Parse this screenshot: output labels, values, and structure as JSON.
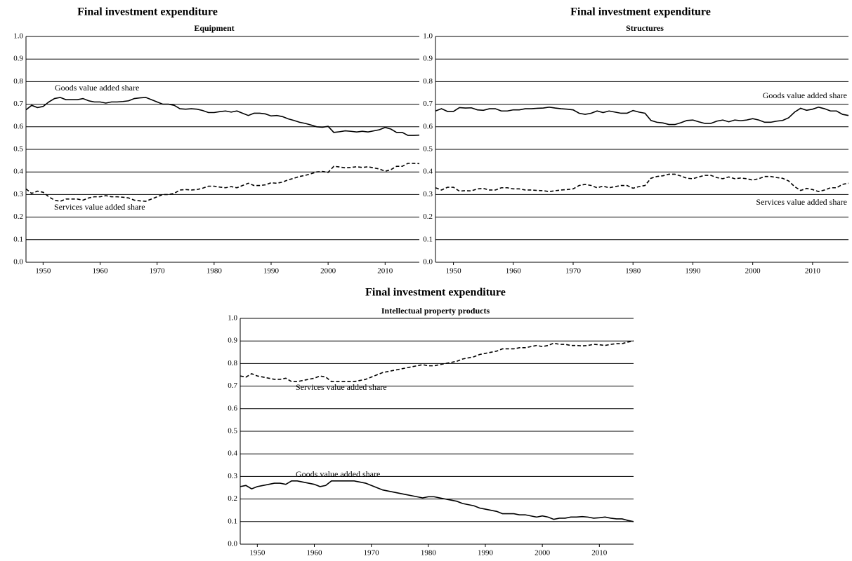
{
  "chart_data": [
    {
      "type": "line",
      "title": "Final investment expenditure",
      "subtitle": "Equipment",
      "x": [
        1947,
        1948,
        1949,
        1950,
        1951,
        1952,
        1953,
        1954,
        1955,
        1956,
        1957,
        1958,
        1959,
        1960,
        1961,
        1962,
        1963,
        1964,
        1965,
        1966,
        1967,
        1968,
        1969,
        1970,
        1971,
        1972,
        1973,
        1974,
        1975,
        1976,
        1977,
        1978,
        1979,
        1980,
        1981,
        1982,
        1983,
        1984,
        1985,
        1986,
        1987,
        1988,
        1989,
        1990,
        1991,
        1992,
        1993,
        1994,
        1995,
        1996,
        1997,
        1998,
        1999,
        2000,
        2001,
        2002,
        2003,
        2004,
        2005,
        2006,
        2007,
        2008,
        2009,
        2010,
        2011,
        2012,
        2013,
        2014,
        2015,
        2016
      ],
      "series": [
        {
          "name": "Goods value added share",
          "color": "#000000",
          "line_style": "solid",
          "values": [
            0.675,
            0.695,
            0.685,
            0.69,
            0.71,
            0.725,
            0.73,
            0.72,
            0.72,
            0.72,
            0.725,
            0.715,
            0.71,
            0.71,
            0.705,
            0.71,
            0.71,
            0.712,
            0.715,
            0.725,
            0.728,
            0.73,
            0.72,
            0.71,
            0.7,
            0.7,
            0.695,
            0.68,
            0.678,
            0.68,
            0.678,
            0.672,
            0.663,
            0.663,
            0.667,
            0.67,
            0.665,
            0.67,
            0.66,
            0.65,
            0.66,
            0.66,
            0.657,
            0.648,
            0.65,
            0.645,
            0.635,
            0.628,
            0.62,
            0.615,
            0.608,
            0.6,
            0.598,
            0.602,
            0.575,
            0.578,
            0.582,
            0.58,
            0.577,
            0.58,
            0.577,
            0.582,
            0.587,
            0.597,
            0.59,
            0.575,
            0.575,
            0.562,
            0.562,
            0.563
          ]
        },
        {
          "name": "Services value added share",
          "color": "#000000",
          "line_style": "dashed",
          "values": [
            0.325,
            0.305,
            0.315,
            0.31,
            0.29,
            0.275,
            0.27,
            0.28,
            0.28,
            0.28,
            0.275,
            0.285,
            0.29,
            0.29,
            0.295,
            0.29,
            0.29,
            0.288,
            0.285,
            0.275,
            0.272,
            0.27,
            0.28,
            0.29,
            0.3,
            0.3,
            0.305,
            0.32,
            0.322,
            0.32,
            0.322,
            0.328,
            0.337,
            0.337,
            0.333,
            0.33,
            0.335,
            0.33,
            0.34,
            0.35,
            0.34,
            0.34,
            0.343,
            0.352,
            0.35,
            0.355,
            0.365,
            0.372,
            0.38,
            0.385,
            0.392,
            0.4,
            0.402,
            0.398,
            0.425,
            0.422,
            0.418,
            0.42,
            0.423,
            0.42,
            0.423,
            0.418,
            0.413,
            0.403,
            0.41,
            0.425,
            0.425,
            0.438,
            0.438,
            0.437
          ]
        }
      ],
      "xlim": [
        1947,
        2016
      ],
      "xticks": [
        1950,
        1960,
        1970,
        1980,
        1990,
        2000,
        2010
      ],
      "ylim": [
        0,
        1
      ],
      "yticks": [
        {
          "value": 0,
          "label": "0.0"
        },
        0.1,
        0.2,
        0.3,
        0.4,
        0.5,
        0.6,
        0.7,
        0.8,
        0.9,
        {
          "value": 1,
          "label": "1.0"
        }
      ],
      "grid": true
    },
    {
      "type": "line",
      "title": "Final investment expenditure",
      "subtitle": "Structures",
      "x": [
        1947,
        1948,
        1949,
        1950,
        1951,
        1952,
        1953,
        1954,
        1955,
        1956,
        1957,
        1958,
        1959,
        1960,
        1961,
        1962,
        1963,
        1964,
        1965,
        1966,
        1967,
        1968,
        1969,
        1970,
        1971,
        1972,
        1973,
        1974,
        1975,
        1976,
        1977,
        1978,
        1979,
        1980,
        1981,
        1982,
        1983,
        1984,
        1985,
        1986,
        1987,
        1988,
        1989,
        1990,
        1991,
        1992,
        1993,
        1994,
        1995,
        1996,
        1997,
        1998,
        1999,
        2000,
        2001,
        2002,
        2003,
        2004,
        2005,
        2006,
        2007,
        2008,
        2009,
        2010,
        2011,
        2012,
        2013,
        2014,
        2015,
        2016
      ],
      "series": [
        {
          "name": "Goods value added share",
          "color": "#000000",
          "line_style": "solid",
          "values": [
            0.67,
            0.68,
            0.668,
            0.668,
            0.685,
            0.683,
            0.684,
            0.675,
            0.673,
            0.68,
            0.68,
            0.67,
            0.67,
            0.675,
            0.675,
            0.68,
            0.68,
            0.682,
            0.683,
            0.687,
            0.683,
            0.68,
            0.678,
            0.675,
            0.66,
            0.655,
            0.66,
            0.67,
            0.663,
            0.67,
            0.665,
            0.66,
            0.66,
            0.672,
            0.665,
            0.66,
            0.628,
            0.62,
            0.617,
            0.61,
            0.61,
            0.618,
            0.628,
            0.63,
            0.622,
            0.615,
            0.615,
            0.625,
            0.63,
            0.622,
            0.63,
            0.627,
            0.63,
            0.636,
            0.63,
            0.62,
            0.62,
            0.625,
            0.628,
            0.64,
            0.665,
            0.682,
            0.673,
            0.678,
            0.687,
            0.68,
            0.67,
            0.67,
            0.655,
            0.65
          ]
        },
        {
          "name": "Services value added share",
          "color": "#000000",
          "line_style": "dashed",
          "values": [
            0.33,
            0.32,
            0.332,
            0.332,
            0.315,
            0.317,
            0.316,
            0.325,
            0.327,
            0.32,
            0.32,
            0.33,
            0.33,
            0.325,
            0.325,
            0.32,
            0.32,
            0.318,
            0.317,
            0.313,
            0.317,
            0.32,
            0.322,
            0.325,
            0.34,
            0.345,
            0.34,
            0.33,
            0.337,
            0.33,
            0.335,
            0.34,
            0.34,
            0.328,
            0.335,
            0.34,
            0.372,
            0.38,
            0.383,
            0.39,
            0.39,
            0.382,
            0.372,
            0.37,
            0.378,
            0.385,
            0.385,
            0.375,
            0.37,
            0.378,
            0.37,
            0.373,
            0.37,
            0.364,
            0.37,
            0.38,
            0.38,
            0.375,
            0.372,
            0.36,
            0.335,
            0.318,
            0.327,
            0.322,
            0.313,
            0.32,
            0.33,
            0.33,
            0.345,
            0.35
          ]
        }
      ],
      "xlim": [
        1947,
        2016
      ],
      "xticks": [
        1950,
        1960,
        1970,
        1980,
        1990,
        2000,
        2010
      ],
      "ylim": [
        0,
        1
      ],
      "yticks": [
        {
          "value": 0,
          "label": "0.0"
        },
        0.1,
        0.2,
        0.3,
        0.4,
        0.5,
        0.6,
        0.7,
        0.8,
        0.9,
        {
          "value": 1,
          "label": "1.0"
        }
      ],
      "grid": true
    },
    {
      "type": "line",
      "title": "Final investment expenditure",
      "subtitle": "Intellectual property products",
      "x": [
        1947,
        1948,
        1949,
        1950,
        1951,
        1952,
        1953,
        1954,
        1955,
        1956,
        1957,
        1958,
        1959,
        1960,
        1961,
        1962,
        1963,
        1964,
        1965,
        1966,
        1967,
        1968,
        1969,
        1970,
        1971,
        1972,
        1973,
        1974,
        1975,
        1976,
        1977,
        1978,
        1979,
        1980,
        1981,
        1982,
        1983,
        1984,
        1985,
        1986,
        1987,
        1988,
        1989,
        1990,
        1991,
        1992,
        1993,
        1994,
        1995,
        1996,
        1997,
        1998,
        1999,
        2000,
        2001,
        2002,
        2003,
        2004,
        2005,
        2006,
        2007,
        2008,
        2009,
        2010,
        2011,
        2012,
        2013,
        2014,
        2015,
        2016
      ],
      "series": [
        {
          "name": "Services value added share",
          "color": "#000000",
          "line_style": "dashed",
          "values": [
            0.745,
            0.74,
            0.755,
            0.745,
            0.74,
            0.735,
            0.73,
            0.73,
            0.735,
            0.72,
            0.72,
            0.725,
            0.73,
            0.735,
            0.745,
            0.74,
            0.72,
            0.72,
            0.72,
            0.72,
            0.72,
            0.725,
            0.73,
            0.74,
            0.75,
            0.76,
            0.765,
            0.77,
            0.775,
            0.78,
            0.785,
            0.79,
            0.795,
            0.79,
            0.79,
            0.795,
            0.8,
            0.805,
            0.81,
            0.82,
            0.825,
            0.83,
            0.84,
            0.845,
            0.85,
            0.855,
            0.865,
            0.865,
            0.865,
            0.87,
            0.87,
            0.875,
            0.88,
            0.875,
            0.88,
            0.89,
            0.885,
            0.885,
            0.88,
            0.88,
            0.878,
            0.88,
            0.885,
            0.883,
            0.88,
            0.885,
            0.888,
            0.888,
            0.895,
            0.9
          ]
        },
        {
          "name": "Goods value added share",
          "color": "#000000",
          "line_style": "solid",
          "values": [
            0.255,
            0.26,
            0.245,
            0.255,
            0.26,
            0.265,
            0.27,
            0.27,
            0.265,
            0.28,
            0.28,
            0.275,
            0.27,
            0.265,
            0.255,
            0.26,
            0.28,
            0.28,
            0.28,
            0.28,
            0.28,
            0.275,
            0.27,
            0.26,
            0.25,
            0.24,
            0.235,
            0.23,
            0.225,
            0.22,
            0.215,
            0.21,
            0.205,
            0.21,
            0.21,
            0.205,
            0.2,
            0.195,
            0.19,
            0.18,
            0.175,
            0.17,
            0.16,
            0.155,
            0.15,
            0.145,
            0.135,
            0.135,
            0.135,
            0.13,
            0.13,
            0.125,
            0.12,
            0.125,
            0.12,
            0.11,
            0.115,
            0.115,
            0.12,
            0.12,
            0.122,
            0.12,
            0.115,
            0.117,
            0.12,
            0.115,
            0.112,
            0.112,
            0.105,
            0.1
          ]
        }
      ],
      "xlim": [
        1947,
        2016
      ],
      "xticks": [
        1950,
        1960,
        1970,
        1980,
        1990,
        2000,
        2010
      ],
      "ylim": [
        0,
        1
      ],
      "yticks": [
        {
          "value": 0,
          "label": "0.0"
        },
        0.1,
        0.2,
        0.3,
        0.4,
        0.5,
        0.6,
        0.7,
        0.8,
        0.9,
        {
          "value": 1,
          "label": "1.0"
        }
      ],
      "grid": true
    }
  ]
}
